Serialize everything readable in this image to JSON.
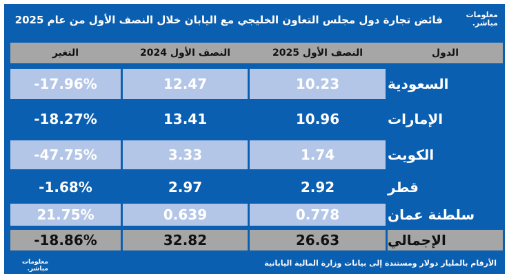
{
  "title": "فائض تجارة دول مجلس التعاون الخليجي مع اليابان خلال النصف الأول من عام 2025",
  "logo": {
    "line1": "معلومات",
    "line2": "مباشر."
  },
  "columns": {
    "country": "الدول",
    "h1_2025": "النصف الأول 2025",
    "h1_2024": "النصف الأول 2024",
    "change": "التغير"
  },
  "rows": [
    {
      "country": "السعودية",
      "h1_2025": "10.23",
      "h1_2024": "12.47",
      "change": "-17.96%"
    },
    {
      "country": "الإمارات",
      "h1_2025": "10.96",
      "h1_2024": "13.41",
      "change": "-18.27%"
    },
    {
      "country": "الكويت",
      "h1_2025": "1.74",
      "h1_2024": "3.33",
      "change": "-47.75%"
    },
    {
      "country": "قطر",
      "h1_2025": "2.92",
      "h1_2024": "2.97",
      "change": "-1.68%"
    },
    {
      "country": "سلطنة عمان",
      "h1_2025": "0.778",
      "h1_2024": "0.639",
      "change": "21.75%"
    },
    {
      "country": "الإجمالي",
      "h1_2025": "26.63",
      "h1_2024": "32.82",
      "change": "-18.86%"
    }
  ],
  "footnote": "الأرقام بالمليار دولار ومستندة إلى بيانات وزارة المالية اليابانية",
  "colors": {
    "blue": "#0b5fb0",
    "light_blue": "#b4c6e7",
    "gray": "#a6a6a6"
  }
}
